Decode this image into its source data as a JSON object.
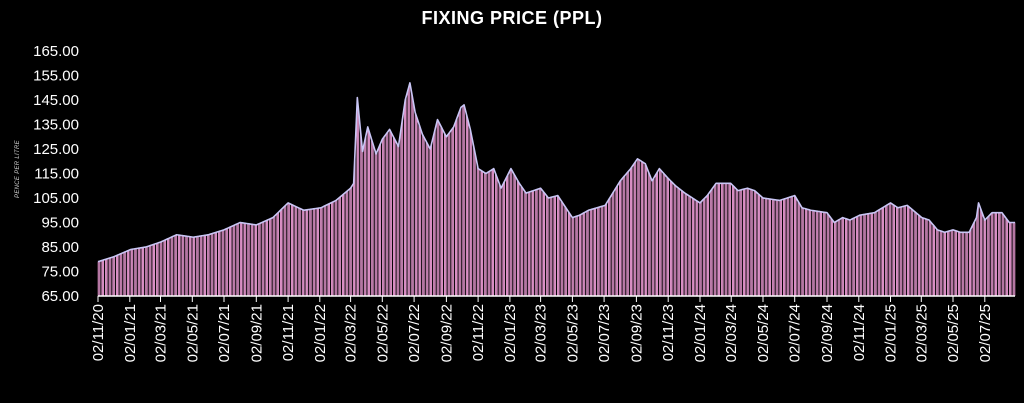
{
  "chart_data": {
    "type": "bar",
    "title": "FIXING PRICE (PPL)",
    "ylabel": "PENCE PER LITRE",
    "xlabel": "",
    "ylim": [
      65,
      165
    ],
    "yticks": [
      "65.00",
      "75.00",
      "85.00",
      "95.00",
      "105.00",
      "115.00",
      "125.00",
      "135.00",
      "145.00",
      "155.00",
      "165.00"
    ],
    "xticks": [
      "02/11/20",
      "02/01/21",
      "02/03/21",
      "02/05/21",
      "02/07/21",
      "02/09/21",
      "02/11/21",
      "02/01/22",
      "02/03/22",
      "02/05/22",
      "02/07/22",
      "02/09/22",
      "02/11/22",
      "02/01/23",
      "02/03/23",
      "02/05/23",
      "02/07/23",
      "02/09/23",
      "02/11/23",
      "02/01/24",
      "02/03/24",
      "02/05/24",
      "02/07/24",
      "02/09/24",
      "02/11/24",
      "02/01/25",
      "02/03/25",
      "02/05/25",
      "02/07/25"
    ],
    "grid": false,
    "colors": {
      "bar": "#d98fc4",
      "line": "#c9c6f5",
      "background": "#000000",
      "text": "#ffffff"
    },
    "series": [
      {
        "frequency": "daily (business days)",
        "x": [
          "2020-11-02",
          "2020-12-02",
          "2021-01-04",
          "2021-02-02",
          "2021-03-02",
          "2021-04-02",
          "2021-05-04",
          "2021-06-02",
          "2021-07-02",
          "2021-08-02",
          "2021-09-02",
          "2021-10-04",
          "2021-11-02",
          "2021-12-02",
          "2022-01-04",
          "2022-02-02",
          "2022-03-02",
          "2022-03-08",
          "2022-03-15",
          "2022-03-25",
          "2022-04-04",
          "2022-04-20",
          "2022-05-02",
          "2022-05-16",
          "2022-06-02",
          "2022-06-15",
          "2022-06-24",
          "2022-07-04",
          "2022-07-18",
          "2022-08-02",
          "2022-08-16",
          "2022-09-02",
          "2022-09-16",
          "2022-09-30",
          "2022-10-06",
          "2022-10-18",
          "2022-11-02",
          "2022-11-17",
          "2022-12-02",
          "2022-12-16",
          "2023-01-04",
          "2023-01-20",
          "2023-02-02",
          "2023-03-02",
          "2023-03-17",
          "2023-04-04",
          "2023-05-02",
          "2023-05-16",
          "2023-06-02",
          "2023-07-04",
          "2023-08-02",
          "2023-08-22",
          "2023-09-04",
          "2023-09-19",
          "2023-10-02",
          "2023-10-16",
          "2023-11-02",
          "2023-11-16",
          "2023-12-04",
          "2024-01-02",
          "2024-01-16",
          "2024-02-02",
          "2024-03-01",
          "2024-03-15",
          "2024-04-02",
          "2024-04-16",
          "2024-05-02",
          "2024-06-03",
          "2024-07-02",
          "2024-07-16",
          "2024-08-02",
          "2024-09-02",
          "2024-09-16",
          "2024-10-02",
          "2024-10-16",
          "2024-11-04",
          "2024-12-02",
          "2025-01-02",
          "2025-01-16",
          "2025-02-03",
          "2025-03-03",
          "2025-03-17",
          "2025-04-02",
          "2025-04-16",
          "2025-05-02",
          "2025-05-16",
          "2025-06-02",
          "2025-06-16",
          "2025-06-20",
          "2025-07-02",
          "2025-07-16",
          "2025-08-04",
          "2025-08-18",
          "2025-08-29"
        ],
        "values": [
          79,
          81,
          84,
          85,
          87,
          90,
          89,
          90,
          92,
          95,
          94,
          97,
          103,
          100,
          101,
          104,
          109,
          111,
          146,
          124,
          134,
          123,
          129,
          133,
          126,
          145,
          152,
          140,
          131,
          125,
          137,
          130,
          134,
          142,
          143,
          133,
          117,
          115,
          117,
          109,
          117,
          111,
          107,
          109,
          105,
          106,
          97,
          98,
          100,
          102,
          112,
          117,
          121,
          119,
          112,
          117,
          113,
          110,
          107,
          103,
          106,
          111,
          111,
          108,
          109,
          108,
          105,
          104,
          106,
          101,
          100,
          99,
          95,
          97,
          96,
          98,
          99,
          103,
          101,
          102,
          97,
          96,
          92,
          91,
          92,
          91,
          91,
          97,
          103,
          96,
          99,
          99,
          95,
          95
        ]
      }
    ]
  }
}
